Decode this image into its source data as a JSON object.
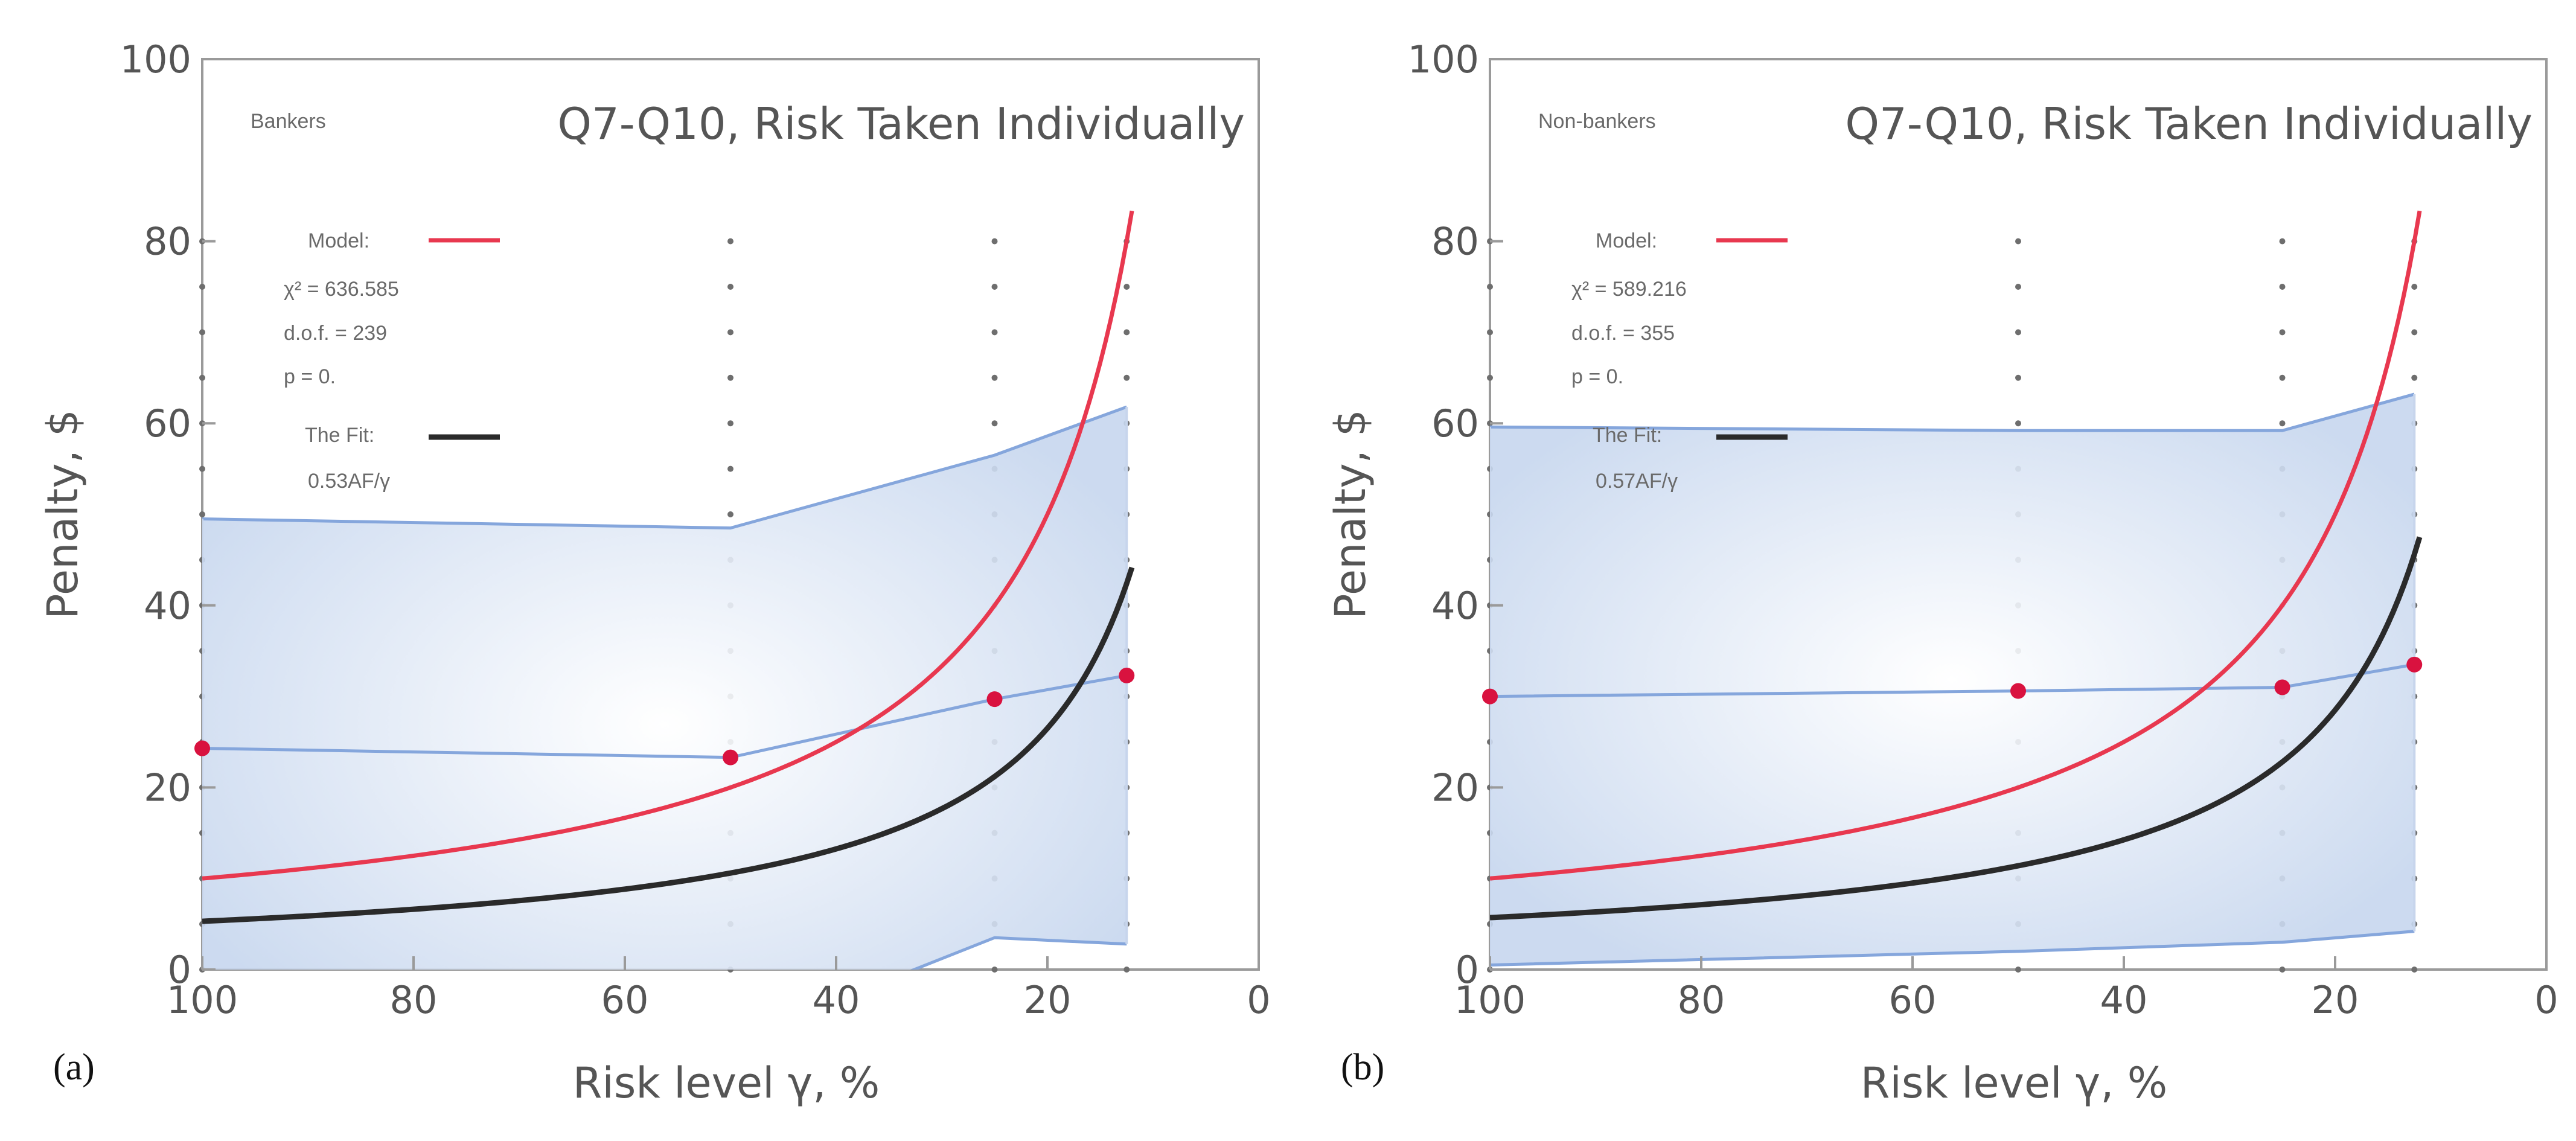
{
  "chart_data": [
    {
      "type": "line",
      "panel_label": "(a)",
      "group": "Bankers",
      "title": "Q7-Q10, Risk Taken Individually",
      "xlabel": "Risk level γ, %",
      "ylabel": "Penalty, $",
      "xlim": [
        100,
        0
      ],
      "ylim": [
        0,
        100
      ],
      "xticks": [
        100,
        80,
        60,
        40,
        20,
        0
      ],
      "yticks": [
        0,
        20,
        40,
        60,
        80,
        100
      ],
      "grid_dot_x": [
        100,
        50,
        25,
        12.5
      ],
      "grid_dot_y": [
        0,
        5,
        10,
        15,
        20,
        25,
        30,
        35,
        40,
        45,
        50,
        55,
        60,
        65,
        70,
        75,
        80
      ],
      "legend": {
        "model_label": "Model:",
        "chi2": "χ² = 636.585",
        "dof": "d.o.f. = 239",
        "p": "p = 0.",
        "fit_label": "The Fit:",
        "fit_formula": "0.53AF/γ"
      },
      "model": {
        "A": 10,
        "color": "#e8384f"
      },
      "fit": {
        "A": 5.3,
        "color": "#2a2a2a"
      },
      "band": {
        "color": "#85a6dc",
        "x": [
          100,
          50,
          25,
          12.5
        ],
        "upper": [
          49.5,
          48.5,
          56.5,
          61.8
        ],
        "mean": [
          24.3,
          23.3,
          29.7,
          32.3
        ],
        "lower": [
          -8,
          -8,
          3.5,
          2.8
        ]
      },
      "points": {
        "x": [
          100,
          50,
          25,
          12.5
        ],
        "y": [
          24.3,
          23.3,
          29.7,
          32.3
        ],
        "color": "#d9123f"
      }
    },
    {
      "type": "line",
      "panel_label": "(b)",
      "group": "Non-bankers",
      "title": "Q7-Q10, Risk Taken Individually",
      "xlabel": "Risk level γ, %",
      "ylabel": "Penalty, $",
      "xlim": [
        100,
        0
      ],
      "ylim": [
        0,
        100
      ],
      "xticks": [
        100,
        80,
        60,
        40,
        20,
        0
      ],
      "yticks": [
        0,
        20,
        40,
        60,
        80,
        100
      ],
      "grid_dot_x": [
        100,
        50,
        25,
        12.5
      ],
      "grid_dot_y": [
        0,
        5,
        10,
        15,
        20,
        25,
        30,
        35,
        40,
        45,
        50,
        55,
        60,
        65,
        70,
        75,
        80
      ],
      "legend": {
        "model_label": "Model:",
        "chi2": "χ² = 589.216",
        "dof": "d.o.f. = 355",
        "p": "p = 0.",
        "fit_label": "The Fit:",
        "fit_formula": "0.57AF/γ"
      },
      "model": {
        "A": 10,
        "color": "#e8384f"
      },
      "fit": {
        "A": 5.7,
        "color": "#2a2a2a"
      },
      "band": {
        "color": "#85a6dc",
        "x": [
          100,
          50,
          25,
          12.5
        ],
        "upper": [
          59.6,
          59.2,
          59.2,
          63.2
        ],
        "mean": [
          30.0,
          30.6,
          31.0,
          33.5
        ],
        "lower": [
          0.5,
          2.0,
          3.0,
          4.2
        ]
      },
      "points": {
        "x": [
          100,
          50,
          25,
          12.5
        ],
        "y": [
          30.0,
          30.6,
          31.0,
          33.5
        ],
        "color": "#d9123f"
      }
    }
  ]
}
